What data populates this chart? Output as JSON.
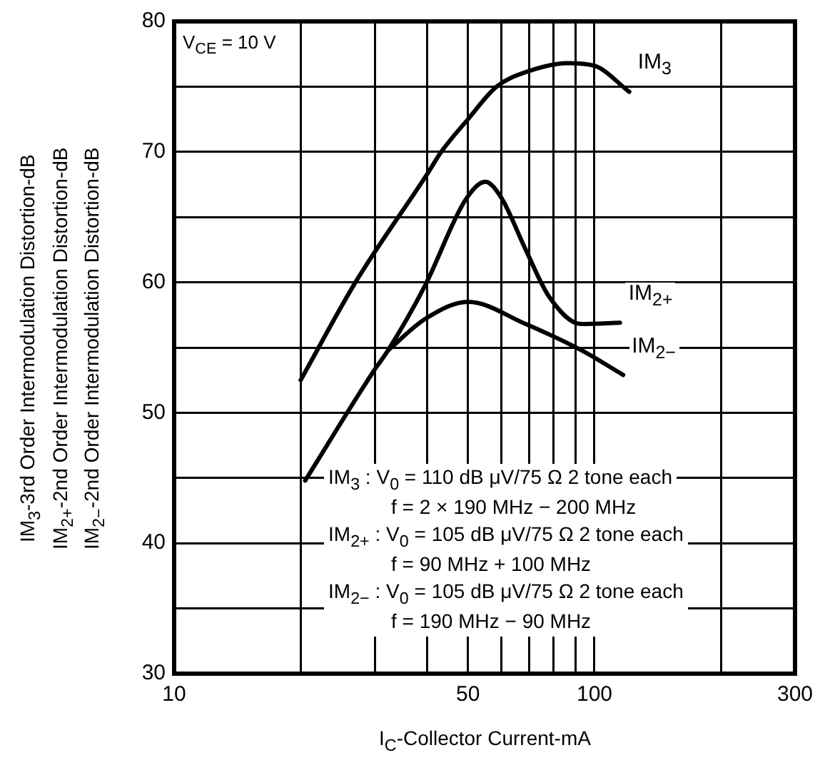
{
  "chart_data": {
    "type": "line",
    "xlabel": "I$_{C}$-Collector Current-mA",
    "ylabel": "IM$_{3}$-3rd Order Intermodulation Distortion-dB\nIM$_{2+}$-2nd Order Intermodulation Distortion-dB\nIM$_{2−}$-2nd Order Intermodulation Distortion-dB",
    "log": "x",
    "xlim": [
      10,
      300
    ],
    "ylim": [
      30,
      80
    ],
    "xticks": [
      10,
      {
        "value": 20,
        "label": null
      },
      {
        "value": 30,
        "label": null
      },
      {
        "value": 40,
        "label": null
      },
      50,
      {
        "value": 60,
        "label": null
      },
      {
        "value": 70,
        "label": null
      },
      {
        "value": 80,
        "label": null
      },
      {
        "value": 90,
        "label": null
      },
      100,
      {
        "value": 200,
        "label": null
      },
      300
    ],
    "yticks": [
      30,
      {
        "value": 35,
        "label": null
      },
      40,
      {
        "value": 45,
        "label": null
      },
      50,
      {
        "value": 55,
        "label": null
      },
      60,
      {
        "value": 65,
        "label": null
      },
      70,
      {
        "value": 75,
        "label": null
      },
      80
    ],
    "grid": true,
    "legend": false,
    "marker": "none",
    "line_style": "solid",
    "annotations": [
      "V$_{CE}$ = 10 V",
      "IM$_{3}$ : V$_{0}$ = 110 dB μV/75 Ω 2 tone each\nf = 2 × 190 MHz − 200 MHz",
      "IM$_{2+}$ : V$_{0}$ = 105 dB μV/75 Ω 2 tone each\nf = 90 MHz + 100 MHz",
      "IM$_{2−}$ : V$_{0}$ = 105 dB μV/75 Ω 2 tone each\nf = 190 MHz − 90 MHz"
    ],
    "series": [
      {
        "name": "IM$_{3}$",
        "color": "#000000",
        "x": [
          20,
          27,
          40,
          43.2,
          50,
          58.5,
          70,
          86.5,
          100,
          121
        ],
        "values": [
          52.5,
          60,
          68.3,
          70,
          72.5,
          75,
          76.2,
          76.8,
          76.6,
          74.6
        ]
      },
      {
        "name": "IM$_{2+}$",
        "color": "#000000",
        "x": [
          20.5,
          29.7,
          32.3,
          39.6,
          49.3,
          55,
          60,
          68.6,
          78,
          93,
          115
        ],
        "values": [
          44.8,
          53.1,
          54.8,
          59.8,
          66.3,
          67.7,
          66.5,
          62.5,
          58.9,
          56.8,
          56.9
        ]
      },
      {
        "name": "IM$_{2−}$",
        "color": "#000000",
        "x": [
          32.3,
          39.6,
          50,
          68.6,
          93,
          117
        ],
        "values": [
          54.8,
          57.2,
          58.5,
          56.8,
          54.8,
          52.9
        ]
      }
    ]
  }
}
